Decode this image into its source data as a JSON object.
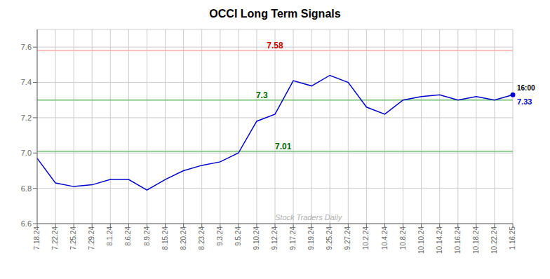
{
  "chart_data": {
    "type": "line",
    "title": "OCCI Long Term Signals",
    "categories": [
      "7.18.24",
      "7.22.24",
      "7.25.24",
      "7.29.24",
      "8.1.24",
      "8.6.24",
      "8.9.24",
      "8.15.24",
      "8.20.24",
      "8.23.24",
      "9.3.24",
      "9.5.24",
      "9.10.24",
      "9.12.24",
      "9.17.24",
      "9.19.24",
      "9.25.24",
      "9.27.24",
      "10.2.24",
      "10.4.24",
      "10.8.24",
      "10.10.24",
      "10.14.24",
      "10.16.24",
      "10.18.24",
      "10.22.24",
      "1.16.25"
    ],
    "values": [
      6.97,
      6.83,
      6.81,
      6.82,
      6.85,
      6.85,
      6.79,
      6.85,
      6.9,
      6.93,
      6.95,
      7.0,
      7.18,
      7.22,
      7.41,
      7.38,
      7.44,
      7.4,
      7.26,
      7.22,
      7.3,
      7.32,
      7.33,
      7.3,
      7.32,
      7.3,
      7.33
    ],
    "color": "#0000cc",
    "ylim": [
      6.6,
      7.7
    ],
    "yticks": [
      6.6,
      6.8,
      {
        "value": 7.0,
        "label": "7.0"
      },
      7.2,
      7.4,
      7.6
    ],
    "grid": true,
    "hlines": [
      {
        "y": 7.58,
        "color": "#ffaaaa",
        "label": {
          "text": "7.58",
          "color": "#cc0000"
        }
      },
      {
        "y": 7.3,
        "color": "#66bb66",
        "label": {
          "text": "7.3",
          "color": "#006600"
        }
      },
      {
        "y": 7.01,
        "color": "#66bb66",
        "label": {
          "text": "7.01",
          "color": "#006600"
        }
      }
    ],
    "annotations": [
      {
        "text": "16:00",
        "x": "1.16.25",
        "y": 7.33,
        "color": "#000000"
      },
      {
        "text": "7.33",
        "x": "1.16.25",
        "y": 7.33,
        "color": "#0000cc"
      },
      {
        "text": "Stock Traders Daily",
        "color": "#b0b0b0"
      }
    ]
  }
}
